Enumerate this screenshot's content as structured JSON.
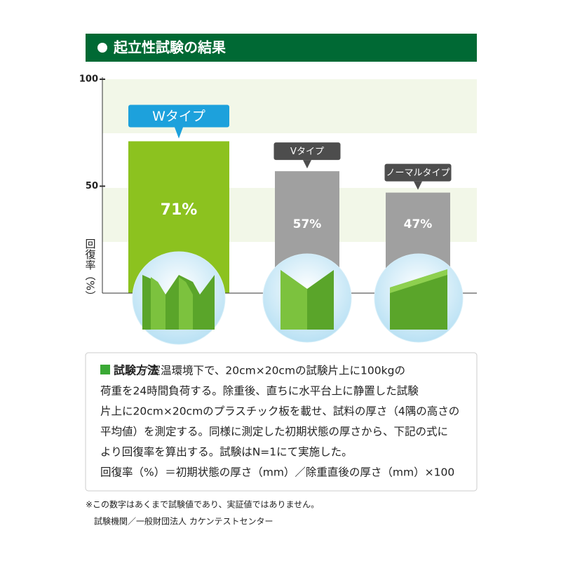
{
  "chart_data": {
    "type": "bar",
    "title": "起立性試験の結果",
    "y_label": "回復率（%）",
    "categories": [
      "Wタイプ",
      "Vタイプ",
      "ノーマルタイプ"
    ],
    "values": [
      71,
      57,
      47
    ],
    "value_labels": [
      "71%",
      "57%",
      "47%"
    ],
    "colors": [
      "#8cc21f",
      "#a0a0a0",
      "#a0a0a0"
    ],
    "label_colors": [
      "#1da1dc",
      "#4d4d4d",
      "#4d4d4d"
    ],
    "ylim": [
      0,
      100
    ],
    "yticks": [
      50,
      100
    ]
  },
  "notes": {
    "heading": "試験方法",
    "lines": [
      "／室温環境下で、20cm×20cmの試験片上に100kgの",
      "荷重を24時間負荷する。除重後、直ちに水平台上に静置した試験",
      "片上に20cm×20cmのプラスチック板を載せ、試料の厚さ（4隅の高さの",
      "平均値）を測定する。同様に測定した初期状態の厚さから、下記の式に",
      "より回復率を算出する。試験はN=1にて実施した。",
      "回復率（%）＝初期状態の厚さ（mm）／除重直後の厚さ（mm）×100"
    ]
  },
  "footnotes": [
    "※この数字はあくまで試験値であり、実証値ではありません。",
    "試験機関／一般財団法人 カケンテストセンター"
  ]
}
